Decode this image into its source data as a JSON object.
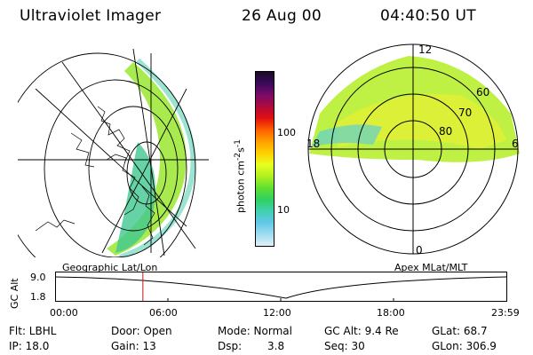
{
  "header": {
    "instrument": "Ultraviolet Imager",
    "date": "26 Aug 00",
    "time": "04:40:50 UT"
  },
  "colorbar": {
    "unit_label": "photon cm",
    "ticks": [
      "100",
      "10"
    ],
    "colors": [
      "#1a0a2a",
      "#3a0a5a",
      "#7a0a6a",
      "#b00a3a",
      "#e01010",
      "#ff6000",
      "#ffa000",
      "#ffd000",
      "#e8ff20",
      "#b0f020",
      "#60e030",
      "#30d060",
      "#40d0b0",
      "#60c8e8",
      "#a0dcf0",
      "#e0f0f8"
    ]
  },
  "geo_map": {
    "label": "Geographic Lat/Lon"
  },
  "polar": {
    "label": "Apex MLat/MLT",
    "mlt_labels": {
      "top": "12",
      "left": "18",
      "right": "6",
      "bottom": "0"
    },
    "lat_labels": [
      "60",
      "70",
      "80"
    ]
  },
  "altitude_plot": {
    "ylabel": "GC Alt",
    "yticks": [
      "9.0",
      "1.8"
    ],
    "xticks": [
      "00:00",
      "06:00",
      "12:00",
      "18:00",
      "23:59"
    ],
    "marker_time": "04:40"
  },
  "info": {
    "flt": "Flt: LBHL",
    "ip": "IP: 18.0",
    "door": "Door: Open",
    "gain": "Gain: 13",
    "mode": "Mode: Normal",
    "dsp_label": "Dsp:",
    "dsp_value": "3.8",
    "gc_alt": "GC Alt: 9.4 Re",
    "seq": "Seq: 30",
    "glat": "GLat: 68.7",
    "glon": "GLon: 306.9"
  }
}
